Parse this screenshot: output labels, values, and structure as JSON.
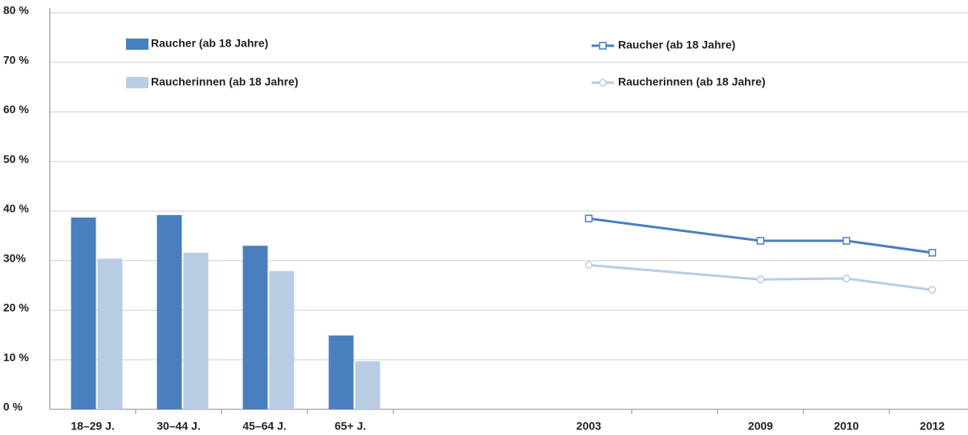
{
  "chart_data": [
    {
      "type": "bar",
      "categories": [
        "18–29 J.",
        "30–44 J.",
        "45–64 J.",
        "65+ J."
      ],
      "series": [
        {
          "name": "Raucher (ab 18 Jahre)",
          "color": "#4a7fbf",
          "values": [
            38.7,
            39.2,
            33.0,
            14.9
          ]
        },
        {
          "name": "Raucherinnen (ab 18 Jahre)",
          "color": "#b8cce4",
          "values": [
            30.4,
            31.6,
            27.9,
            9.7
          ]
        }
      ],
      "ylim": [
        0,
        80
      ],
      "yticks": [
        {
          "value": 0,
          "label": "0 %"
        },
        {
          "value": 10,
          "label": "10 %"
        },
        {
          "value": 20,
          "label": "20 %"
        },
        {
          "value": 30,
          "label": "30%"
        },
        {
          "value": 40,
          "label": "40 %"
        },
        {
          "value": 50,
          "label": "50 %"
        },
        {
          "value": 60,
          "label": "60 %"
        },
        {
          "value": 70,
          "label": "70 %"
        },
        {
          "value": 80,
          "label": "80 %"
        }
      ],
      "grid": true
    },
    {
      "type": "line",
      "categories": [
        "2003",
        null,
        "2009",
        "2010",
        "2012"
      ],
      "series": [
        {
          "name": "Raucher (ab 18 Jahre)",
          "color": "#4a7fbf",
          "marker": "square",
          "values": [
            38.5,
            null,
            34.0,
            34.0,
            31.6
          ]
        },
        {
          "name": "Raucherinnen (ab 18 Jahre)",
          "color": "#b8cce4",
          "marker": "circle",
          "values": [
            29.1,
            null,
            26.2,
            26.4,
            24.1
          ]
        }
      ],
      "ylim": [
        0,
        80
      ]
    }
  ]
}
